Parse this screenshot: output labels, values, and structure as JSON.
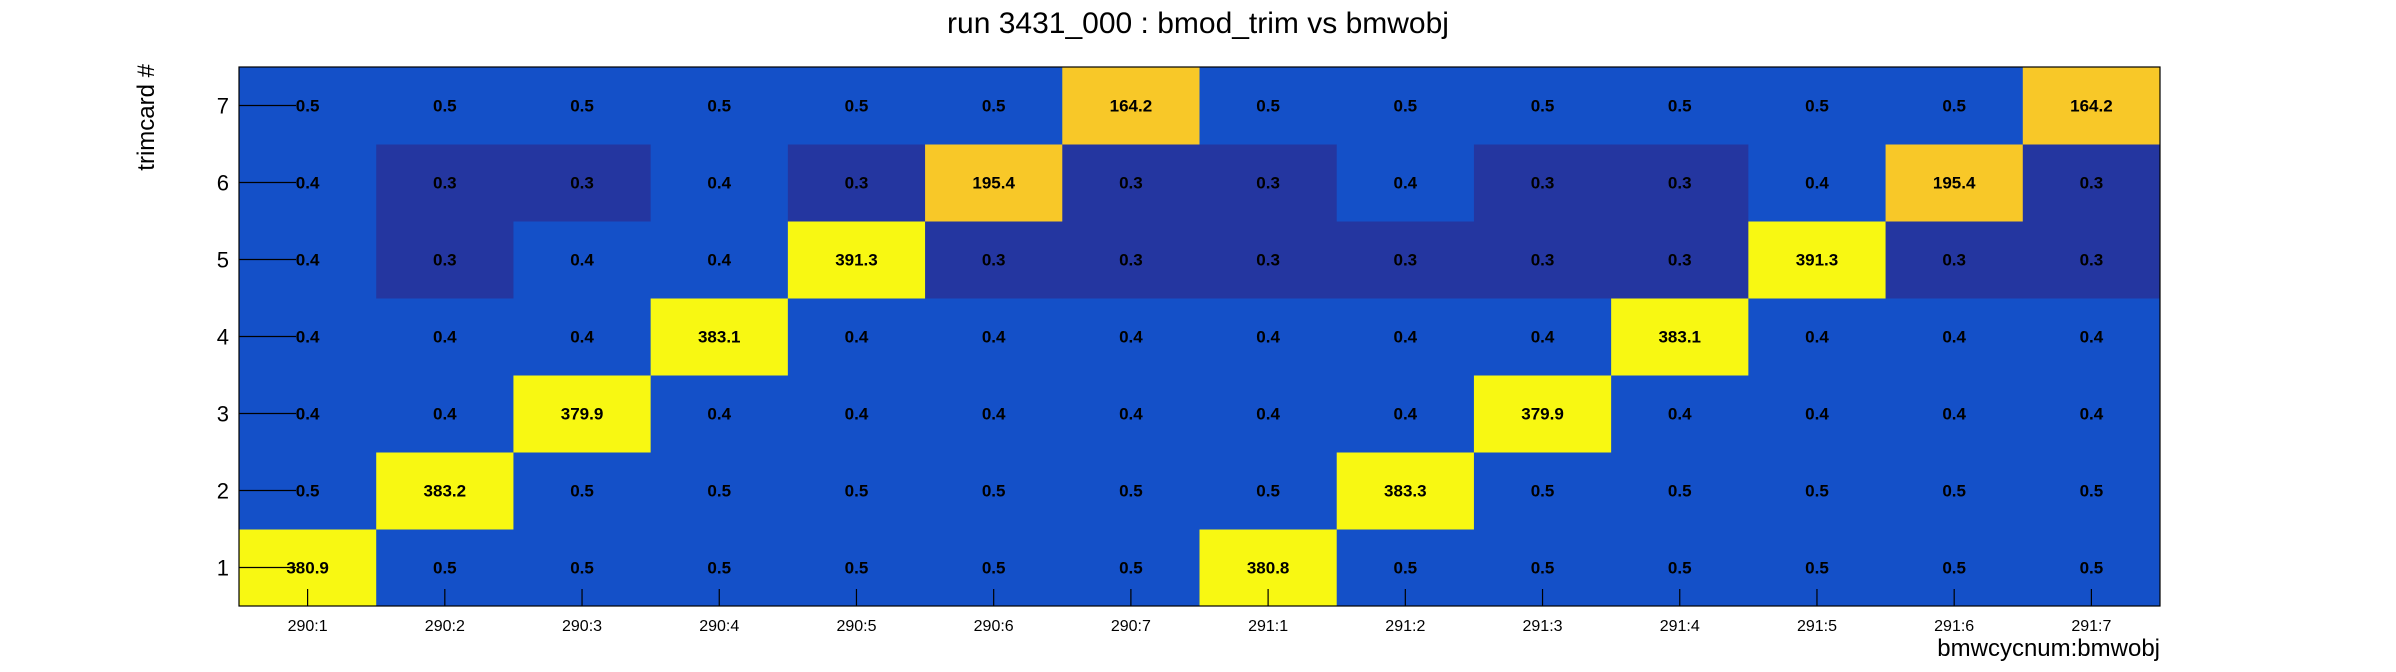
{
  "chart_data": {
    "type": "heatmap",
    "title": "run 3431_000 : bmod_trim vs bmwobj",
    "xlabel": "bmwcycnum:bmwobj",
    "ylabel": "trimcard #",
    "x_categories": [
      "290:1",
      "290:2",
      "290:3",
      "290:4",
      "290:5",
      "290:6",
      "290:7",
      "291:1",
      "291:2",
      "291:3",
      "291:4",
      "291:5",
      "291:6",
      "291:7"
    ],
    "y_categories": [
      "1",
      "2",
      "3",
      "4",
      "5",
      "6",
      "7"
    ],
    "values": [
      [
        380.9,
        0.5,
        0.5,
        0.5,
        0.5,
        0.5,
        0.5,
        380.8,
        0.5,
        0.5,
        0.5,
        0.5,
        0.5,
        0.5
      ],
      [
        0.5,
        383.2,
        0.5,
        0.5,
        0.5,
        0.5,
        0.5,
        0.5,
        383.3,
        0.5,
        0.5,
        0.5,
        0.5,
        0.5
      ],
      [
        0.4,
        0.4,
        379.9,
        0.4,
        0.4,
        0.4,
        0.4,
        0.4,
        0.4,
        379.9,
        0.4,
        0.4,
        0.4,
        0.4
      ],
      [
        0.4,
        0.4,
        0.4,
        383.1,
        0.4,
        0.4,
        0.4,
        0.4,
        0.4,
        0.4,
        383.1,
        0.4,
        0.4,
        0.4
      ],
      [
        0.4,
        0.3,
        0.4,
        0.4,
        391.3,
        0.3,
        0.3,
        0.3,
        0.3,
        0.3,
        0.3,
        391.3,
        0.3,
        0.3
      ],
      [
        0.4,
        0.3,
        0.3,
        0.4,
        0.3,
        195.4,
        0.3,
        0.3,
        0.4,
        0.3,
        0.3,
        0.4,
        195.4,
        0.3
      ],
      [
        0.5,
        0.5,
        0.5,
        0.5,
        0.5,
        0.5,
        164.2,
        0.5,
        0.5,
        0.5,
        0.5,
        0.5,
        0.5,
        164.2
      ]
    ],
    "grid": false,
    "colors": {
      "low": "#2436a0",
      "base": "#1450c8",
      "mid": "#f8c828",
      "high": "#f8f812"
    }
  }
}
